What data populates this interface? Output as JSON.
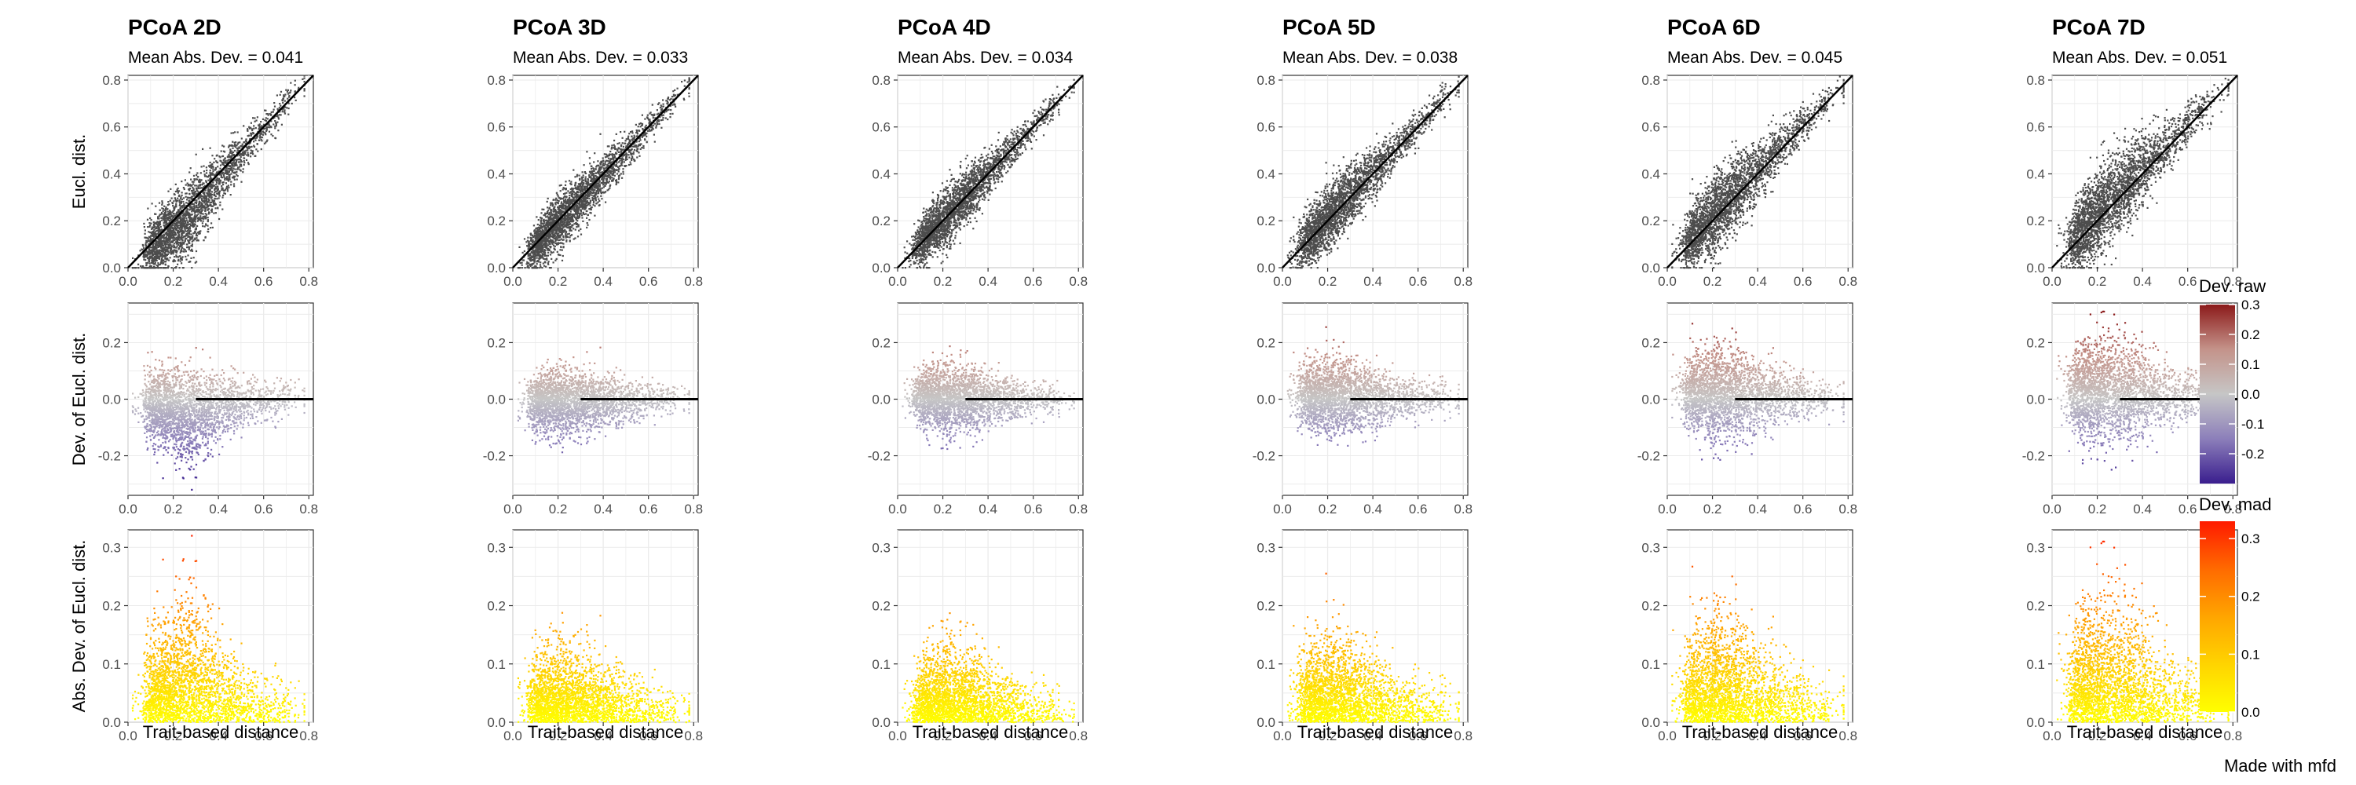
{
  "chart_data": {
    "type": "scatter",
    "panels": [
      {
        "title": "PCoA 2D",
        "subtitle": "Mean Abs. Dev. = 0.041",
        "dims": 2,
        "mad": 0.041
      },
      {
        "title": "PCoA 3D",
        "subtitle": "Mean Abs. Dev. = 0.033",
        "dims": 3,
        "mad": 0.033
      },
      {
        "title": "PCoA 4D",
        "subtitle": "Mean Abs. Dev. = 0.034",
        "dims": 4,
        "mad": 0.034
      },
      {
        "title": "PCoA 5D",
        "subtitle": "Mean Abs. Dev. = 0.038",
        "dims": 5,
        "mad": 0.038
      },
      {
        "title": "PCoA 6D",
        "subtitle": "Mean Abs. Dev. = 0.045",
        "dims": 6,
        "mad": 0.045
      },
      {
        "title": "PCoA 7D",
        "subtitle": "Mean Abs. Dev. = 0.051",
        "dims": 7,
        "mad": 0.051
      }
    ],
    "rows": [
      {
        "ylabel": "Eucl. dist.",
        "ylim": [
          0,
          0.82
        ],
        "yticks": [
          0.0,
          0.2,
          0.4,
          0.6,
          0.8
        ],
        "yticklabels": [
          "0.0",
          "0.2",
          "0.4",
          "0.6",
          "0.8"
        ],
        "reference_line": "y = x",
        "point_color": "#4d4d4d"
      },
      {
        "ylabel": "Dev. of Eucl. dist.",
        "ylim": [
          -0.34,
          0.34
        ],
        "yticks": [
          -0.2,
          0.0,
          0.2
        ],
        "yticklabels": [
          "-0.2",
          "0.0",
          "0.2"
        ],
        "reference_line": "y = 0",
        "color_by": "Dev. raw"
      },
      {
        "ylabel": "Abs. Dev. of Eucl. dist.",
        "ylim": [
          0,
          0.33
        ],
        "yticks": [
          0.0,
          0.1,
          0.2,
          0.3
        ],
        "yticklabels": [
          "0.0",
          "0.1",
          "0.2",
          "0.3"
        ],
        "color_by": "Dev. mad"
      }
    ],
    "x": {
      "label": "Trait-based distance",
      "xlim": [
        0,
        0.82
      ],
      "ticks": [
        0.0,
        0.2,
        0.4,
        0.6,
        0.8
      ],
      "ticklabels": [
        "0.0",
        "0.2",
        "0.4",
        "0.6",
        "0.8"
      ]
    },
    "grid": true,
    "legends": [
      {
        "title": "Dev. raw",
        "range": [
          -0.3,
          0.3
        ],
        "ticks": [
          0.3,
          0.2,
          0.1,
          0.0,
          -0.1,
          -0.2
        ],
        "ticklabels": [
          "0.3",
          "0.2",
          "0.1",
          "0.0",
          "-0.1",
          "-0.2"
        ],
        "colors": [
          "#3a1e8e",
          "#8c7fba",
          "#c6c6c6",
          "#c4938a",
          "#8b1a1a"
        ]
      },
      {
        "title": "Dev. mad",
        "range": [
          0,
          0.33
        ],
        "ticks": [
          0.3,
          0.2,
          0.1,
          0.0
        ],
        "ticklabels": [
          "0.3",
          "0.2",
          "0.1",
          "0.0"
        ],
        "colors": [
          "#ffff00",
          "#ffd400",
          "#ffa500",
          "#ff6a00",
          "#ff1a00"
        ]
      }
    ]
  },
  "caption": "Made with mfd"
}
